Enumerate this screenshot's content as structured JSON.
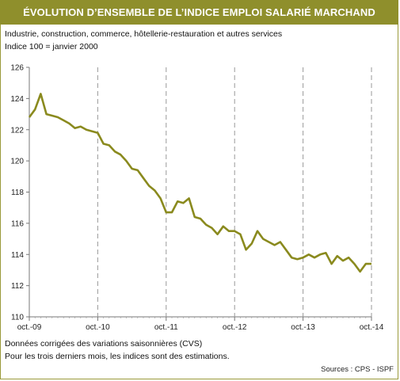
{
  "header": {
    "title": "ÉVOLUTION D’ENSEMBLE DE L’INDICE EMPLOI SALARIÉ MARCHAND"
  },
  "subtitles": {
    "line1": "Industrie, construction, commerce, hôtellerie-restauration et autres services",
    "line2": "Indice 100 = janvier 2000"
  },
  "notes": {
    "line1": "Données corrigées des variations saisonnières (CVS)",
    "line2": "Pour les trois derniers mois, les indices sont des estimations."
  },
  "source": "Sources : CPS - ISPF",
  "colors": {
    "title_bg": "#8f8f2c",
    "line": "#8a8a1e",
    "grid": "#9a9a9a"
  },
  "chart_data": {
    "type": "line",
    "x_tick_labels": [
      "oct.-09",
      "oct.-10",
      "oct.-11",
      "oct.-12",
      "oct.-13",
      "oct.-14"
    ],
    "yticks": [
      110,
      112,
      114,
      116,
      118,
      120,
      122,
      124,
      126
    ],
    "ylim": [
      110,
      126
    ],
    "grid": "vertical dashed at each October",
    "series": [
      {
        "values": [
          122.8,
          123.3,
          124.3,
          123.0,
          122.9,
          122.8,
          122.6,
          122.4,
          122.1,
          122.2,
          122.0,
          121.9,
          121.8,
          121.1,
          121.0,
          120.6,
          120.4,
          120.0,
          119.5,
          119.4,
          118.9,
          118.4,
          118.1,
          117.6,
          116.7,
          116.7,
          117.4,
          117.3,
          117.6,
          116.4,
          116.3,
          115.9,
          115.7,
          115.3,
          115.8,
          115.5,
          115.5,
          115.3,
          114.3,
          114.7,
          115.5,
          115.0,
          114.8,
          114.6,
          114.8,
          114.3,
          113.8,
          113.7,
          113.8,
          114.0,
          113.8,
          114.0,
          114.1,
          113.4,
          113.9,
          113.6,
          113.8,
          113.4,
          112.9,
          113.4,
          113.4
        ]
      }
    ]
  }
}
